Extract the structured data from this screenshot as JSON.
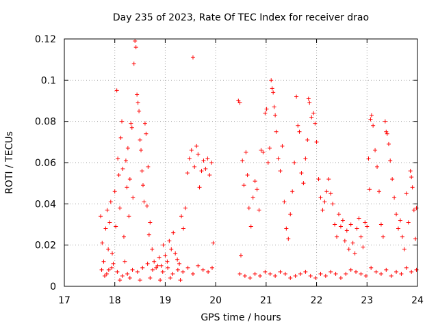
{
  "chart_data": {
    "type": "scatter",
    "title": "Day 235 of 2023, Rate Of TEC Index for receiver drao",
    "xlabel": "GPS time / hours",
    "ylabel": "ROTI / TECUs",
    "xlim": [
      17,
      24
    ],
    "ylim": [
      0,
      0.12
    ],
    "xticks": [
      17,
      18,
      19,
      20,
      21,
      22,
      23,
      24
    ],
    "yticks": [
      0,
      0.02,
      0.04,
      0.06,
      0.08,
      0.1,
      0.12
    ],
    "xtick_labels": [
      "17",
      "18",
      "19",
      "20",
      "21",
      "22",
      "23",
      "24"
    ],
    "ytick_labels": [
      "0",
      "0.02",
      "0.04",
      "0.06",
      "0.08",
      "0.1",
      "0.12"
    ],
    "grid": true,
    "marker": "+",
    "marker_color": "#ff0000",
    "series": [
      {
        "name": "ROTI",
        "points": [
          [
            17.72,
            0.034
          ],
          [
            17.75,
            0.021
          ],
          [
            17.78,
            0.012
          ],
          [
            17.8,
            0.005
          ],
          [
            17.82,
            0.028
          ],
          [
            17.85,
            0.037
          ],
          [
            17.87,
            0.018
          ],
          [
            17.88,
            0.008
          ],
          [
            17.9,
            0.031
          ],
          [
            17.92,
            0.041
          ],
          [
            17.95,
            0.016
          ],
          [
            17.97,
            0.011
          ],
          [
            18.0,
            0.046
          ],
          [
            18.02,
            0.029
          ],
          [
            18.04,
            0.095
          ],
          [
            18.06,
            0.062
          ],
          [
            18.08,
            0.054
          ],
          [
            18.1,
            0.038
          ],
          [
            18.12,
            0.072
          ],
          [
            18.14,
            0.08
          ],
          [
            18.16,
            0.057
          ],
          [
            18.18,
            0.024
          ],
          [
            18.2,
            0.012
          ],
          [
            18.22,
            0.061
          ],
          [
            18.24,
            0.048
          ],
          [
            18.26,
            0.067
          ],
          [
            18.28,
            0.034
          ],
          [
            18.3,
            0.052
          ],
          [
            18.32,
            0.079
          ],
          [
            18.34,
            0.077
          ],
          [
            18.36,
            0.043
          ],
          [
            18.38,
            0.108
          ],
          [
            18.4,
            0.119
          ],
          [
            18.42,
            0.116
          ],
          [
            18.44,
            0.093
          ],
          [
            18.46,
            0.089
          ],
          [
            18.48,
            0.085
          ],
          [
            18.5,
            0.071
          ],
          [
            18.52,
            0.066
          ],
          [
            18.54,
            0.056
          ],
          [
            18.56,
            0.049
          ],
          [
            18.58,
            0.041
          ],
          [
            18.6,
            0.079
          ],
          [
            18.62,
            0.074
          ],
          [
            18.64,
            0.039
          ],
          [
            18.66,
            0.058
          ],
          [
            18.68,
            0.025
          ],
          [
            18.7,
            0.031
          ],
          [
            18.74,
            0.018
          ],
          [
            18.78,
            0.012
          ],
          [
            18.82,
            0.009
          ],
          [
            18.88,
            0.014
          ],
          [
            18.92,
            0.01
          ],
          [
            18.96,
            0.02
          ],
          [
            19.0,
            0.015
          ],
          [
            19.04,
            0.012
          ],
          [
            19.08,
            0.022
          ],
          [
            19.12,
            0.018
          ],
          [
            19.16,
            0.026
          ],
          [
            19.2,
            0.016
          ],
          [
            19.24,
            0.013
          ],
          [
            19.28,
            0.011
          ],
          [
            19.32,
            0.034
          ],
          [
            19.36,
            0.028
          ],
          [
            19.4,
            0.038
          ],
          [
            19.44,
            0.055
          ],
          [
            19.48,
            0.062
          ],
          [
            19.52,
            0.066
          ],
          [
            19.55,
            0.111
          ],
          [
            19.58,
            0.058
          ],
          [
            19.62,
            0.068
          ],
          [
            19.65,
            0.064
          ],
          [
            19.68,
            0.048
          ],
          [
            19.72,
            0.056
          ],
          [
            19.76,
            0.061
          ],
          [
            19.8,
            0.057
          ],
          [
            19.84,
            0.062
          ],
          [
            19.88,
            0.054
          ],
          [
            19.92,
            0.06
          ],
          [
            19.95,
            0.021
          ],
          [
            17.74,
            0.008
          ],
          [
            17.84,
            0.006
          ],
          [
            17.94,
            0.009
          ],
          [
            18.05,
            0.007
          ],
          [
            18.15,
            0.005
          ],
          [
            18.25,
            0.006
          ],
          [
            18.35,
            0.008
          ],
          [
            18.45,
            0.007
          ],
          [
            18.55,
            0.009
          ],
          [
            18.65,
            0.011
          ],
          [
            18.75,
            0.008
          ],
          [
            18.85,
            0.01
          ],
          [
            18.95,
            0.007
          ],
          [
            19.05,
            0.009
          ],
          [
            19.15,
            0.006
          ],
          [
            19.25,
            0.008
          ],
          [
            19.35,
            0.007
          ],
          [
            19.45,
            0.009
          ],
          [
            19.55,
            0.006
          ],
          [
            19.65,
            0.01
          ],
          [
            19.75,
            0.008
          ],
          [
            19.85,
            0.007
          ],
          [
            19.93,
            0.009
          ],
          [
            18.1,
            0.003
          ],
          [
            18.3,
            0.004
          ],
          [
            18.5,
            0.003
          ],
          [
            18.7,
            0.004
          ],
          [
            18.9,
            0.003
          ],
          [
            19.1,
            0.004
          ],
          [
            19.3,
            0.003
          ],
          [
            20.45,
            0.09
          ],
          [
            20.48,
            0.089
          ],
          [
            20.5,
            0.015
          ],
          [
            20.53,
            0.061
          ],
          [
            20.56,
            0.049
          ],
          [
            20.6,
            0.065
          ],
          [
            20.63,
            0.054
          ],
          [
            20.66,
            0.038
          ],
          [
            20.7,
            0.029
          ],
          [
            20.74,
            0.043
          ],
          [
            20.78,
            0.051
          ],
          [
            20.82,
            0.047
          ],
          [
            20.86,
            0.037
          ],
          [
            20.9,
            0.066
          ],
          [
            20.94,
            0.065
          ],
          [
            20.98,
            0.084
          ],
          [
            21.01,
            0.086
          ],
          [
            21.04,
            0.06
          ],
          [
            21.07,
            0.067
          ],
          [
            21.1,
            0.1
          ],
          [
            21.12,
            0.096
          ],
          [
            21.14,
            0.094
          ],
          [
            21.16,
            0.087
          ],
          [
            21.18,
            0.083
          ],
          [
            21.2,
            0.075
          ],
          [
            21.24,
            0.062
          ],
          [
            21.28,
            0.056
          ],
          [
            21.32,
            0.068
          ],
          [
            21.36,
            0.041
          ],
          [
            21.4,
            0.028
          ],
          [
            21.44,
            0.023
          ],
          [
            21.48,
            0.035
          ],
          [
            21.52,
            0.046
          ],
          [
            21.56,
            0.06
          ],
          [
            21.6,
            0.092
          ],
          [
            21.63,
            0.078
          ],
          [
            21.66,
            0.075
          ],
          [
            21.7,
            0.055
          ],
          [
            21.74,
            0.05
          ],
          [
            21.78,
            0.062
          ],
          [
            21.82,
            0.071
          ],
          [
            21.84,
            0.091
          ],
          [
            21.86,
            0.089
          ],
          [
            21.9,
            0.082
          ],
          [
            21.94,
            0.084
          ],
          [
            21.97,
            0.079
          ],
          [
            22.0,
            0.07
          ],
          [
            22.04,
            0.052
          ],
          [
            22.08,
            0.043
          ],
          [
            22.12,
            0.037
          ],
          [
            22.16,
            0.041
          ],
          [
            22.2,
            0.046
          ],
          [
            22.24,
            0.052
          ],
          [
            22.28,
            0.045
          ],
          [
            22.32,
            0.04
          ],
          [
            22.36,
            0.03
          ],
          [
            22.4,
            0.024
          ],
          [
            22.44,
            0.035
          ],
          [
            22.48,
            0.029
          ],
          [
            22.52,
            0.032
          ],
          [
            22.56,
            0.022
          ],
          [
            22.6,
            0.027
          ],
          [
            22.64,
            0.018
          ],
          [
            22.68,
            0.03
          ],
          [
            22.72,
            0.021
          ],
          [
            22.76,
            0.016
          ],
          [
            22.8,
            0.028
          ],
          [
            22.84,
            0.033
          ],
          [
            22.88,
            0.024
          ],
          [
            22.92,
            0.019
          ],
          [
            22.96,
            0.031
          ],
          [
            23.0,
            0.029
          ],
          [
            23.03,
            0.062
          ],
          [
            23.05,
            0.047
          ],
          [
            23.07,
            0.081
          ],
          [
            23.09,
            0.083
          ],
          [
            23.12,
            0.078
          ],
          [
            23.16,
            0.066
          ],
          [
            23.2,
            0.058
          ],
          [
            23.24,
            0.046
          ],
          [
            23.28,
            0.03
          ],
          [
            23.32,
            0.024
          ],
          [
            23.36,
            0.08
          ],
          [
            23.38,
            0.075
          ],
          [
            23.4,
            0.074
          ],
          [
            23.43,
            0.069
          ],
          [
            23.46,
            0.061
          ],
          [
            23.5,
            0.052
          ],
          [
            23.54,
            0.043
          ],
          [
            23.58,
            0.035
          ],
          [
            23.62,
            0.028
          ],
          [
            23.66,
            0.032
          ],
          [
            23.7,
            0.024
          ],
          [
            23.74,
            0.018
          ],
          [
            23.78,
            0.045
          ],
          [
            23.82,
            0.031
          ],
          [
            23.86,
            0.056
          ],
          [
            23.88,
            0.053
          ],
          [
            23.9,
            0.048
          ],
          [
            23.93,
            0.037
          ],
          [
            23.96,
            0.023
          ],
          [
            23.98,
            0.038
          ],
          [
            20.48,
            0.006
          ],
          [
            20.58,
            0.005
          ],
          [
            20.68,
            0.004
          ],
          [
            20.78,
            0.006
          ],
          [
            20.88,
            0.005
          ],
          [
            20.98,
            0.007
          ],
          [
            21.08,
            0.006
          ],
          [
            21.18,
            0.005
          ],
          [
            21.28,
            0.007
          ],
          [
            21.38,
            0.006
          ],
          [
            21.48,
            0.004
          ],
          [
            21.58,
            0.005
          ],
          [
            21.68,
            0.006
          ],
          [
            21.78,
            0.007
          ],
          [
            21.88,
            0.005
          ],
          [
            21.98,
            0.004
          ],
          [
            22.08,
            0.006
          ],
          [
            22.18,
            0.005
          ],
          [
            22.28,
            0.007
          ],
          [
            22.38,
            0.006
          ],
          [
            22.48,
            0.004
          ],
          [
            22.58,
            0.006
          ],
          [
            22.68,
            0.008
          ],
          [
            22.78,
            0.007
          ],
          [
            22.88,
            0.006
          ],
          [
            22.98,
            0.005
          ],
          [
            23.08,
            0.009
          ],
          [
            23.18,
            0.007
          ],
          [
            23.28,
            0.006
          ],
          [
            23.38,
            0.008
          ],
          [
            23.48,
            0.005
          ],
          [
            23.58,
            0.007
          ],
          [
            23.68,
            0.006
          ],
          [
            23.78,
            0.009
          ],
          [
            23.88,
            0.007
          ],
          [
            23.98,
            0.008
          ]
        ]
      }
    ]
  }
}
